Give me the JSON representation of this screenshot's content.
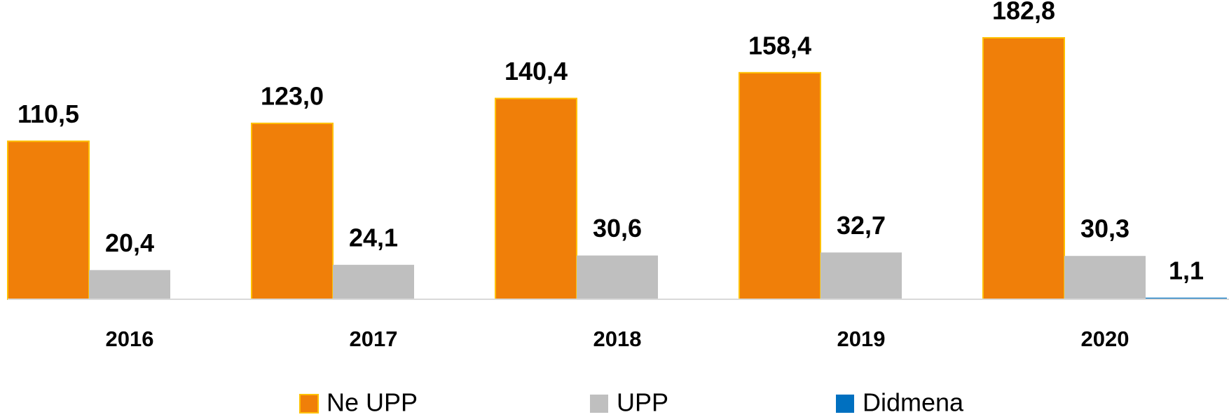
{
  "chart_data": {
    "type": "bar",
    "categories": [
      "2016",
      "2017",
      "2018",
      "2019",
      "2020"
    ],
    "series": [
      {
        "name": "Ne UPP",
        "color": "#f07f09",
        "values": [
          110.5,
          123.0,
          140.4,
          158.4,
          182.8
        ],
        "value_labels": [
          "110,5",
          "123,0",
          "140,4",
          "158,4",
          "182,8"
        ]
      },
      {
        "name": "UPP",
        "color": "#bfbfbf",
        "values": [
          20.4,
          24.1,
          30.6,
          32.7,
          30.3
        ],
        "value_labels": [
          "20,4",
          "24,1",
          "30,6",
          "32,7",
          "30,3"
        ]
      },
      {
        "name": "Didmena",
        "color": "#0070c0",
        "values": [
          null,
          null,
          null,
          null,
          1.1
        ],
        "value_labels": [
          null,
          null,
          null,
          null,
          "1,1"
        ]
      }
    ],
    "legend": "bottom"
  }
}
